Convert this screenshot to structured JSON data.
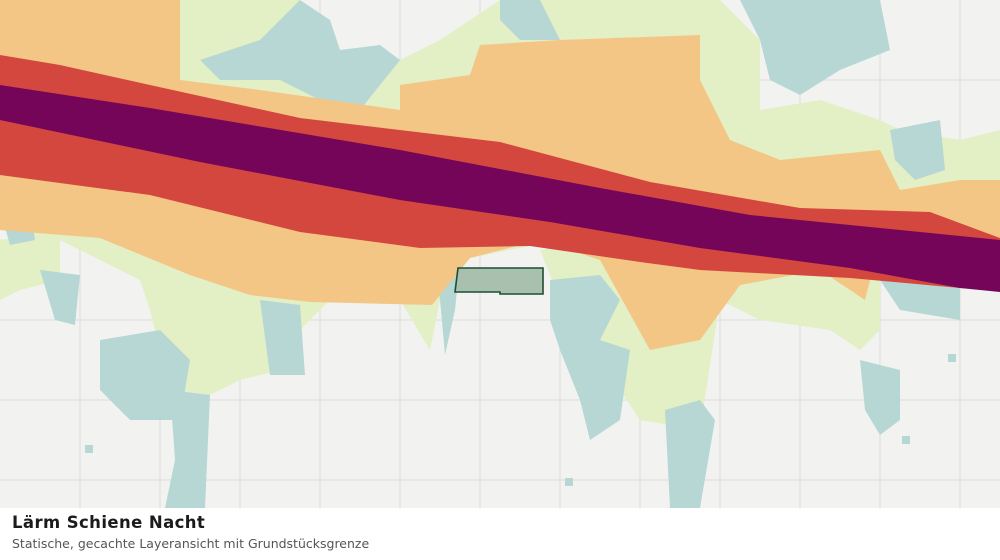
{
  "legend_panel": {
    "title": "Lärm Schiene Nacht",
    "subtitle": "Statische, gecachte Layeransicht mit Grundstücksgrenze"
  }
}
